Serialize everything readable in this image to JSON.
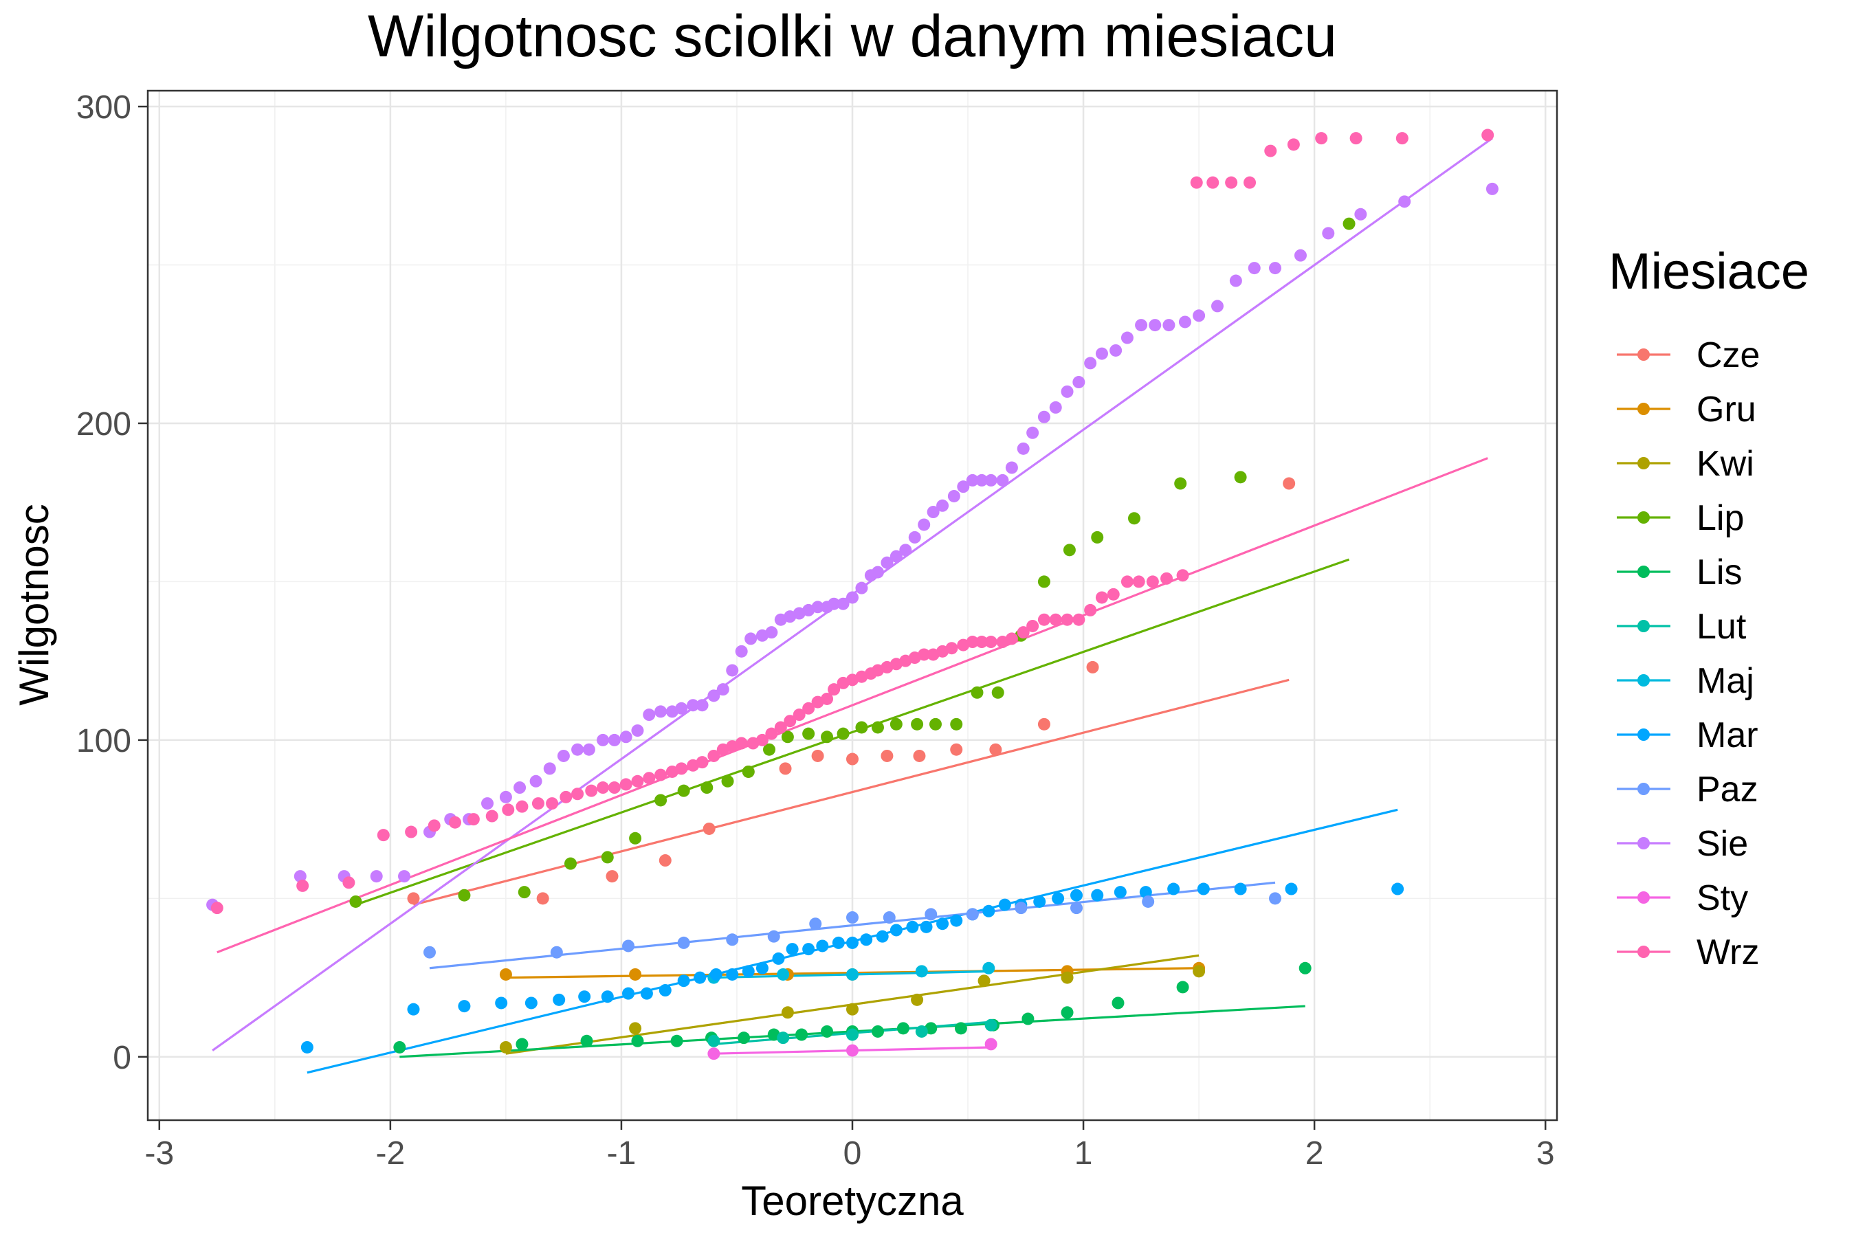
{
  "chart_data": {
    "type": "scatter",
    "title": "Wilgotnosc sciolki w danym miesiacu",
    "xlabel": "Teoretyczna",
    "ylabel": "Wilgotnosc",
    "xlim": [
      -3.05,
      3.05
    ],
    "ylim": [
      -20,
      305
    ],
    "x_ticks": [
      -3,
      -2,
      -1,
      0,
      1,
      2,
      3
    ],
    "y_ticks": [
      0,
      100,
      200,
      300
    ],
    "x_tick_labels": [
      "-3",
      "-2",
      "-1",
      "0",
      "1",
      "2",
      "3"
    ],
    "y_tick_labels": [
      "0",
      "100",
      "200",
      "300"
    ],
    "grid": true,
    "legend": {
      "title": "Miesiace",
      "position": "right"
    },
    "series": [
      {
        "name": "Cze",
        "color": "#F8766D",
        "x": [
          -1.9,
          -1.34,
          -1.04,
          -0.81,
          -0.62,
          -0.45,
          -0.29,
          -0.15,
          0,
          0.15,
          0.29,
          0.45,
          0.62,
          0.83,
          1.04,
          1.89
        ],
        "y": [
          50,
          50,
          57,
          62,
          72,
          90,
          91,
          95,
          94,
          95,
          95,
          97,
          97,
          105,
          123,
          181
        ],
        "line": [
          [
            -1.9,
            48
          ],
          [
            1.89,
            119
          ]
        ]
      },
      {
        "name": "Gru",
        "color": "#DB8E00",
        "x": [
          -1.5,
          -0.94,
          -0.28,
          0,
          0.93,
          1.5
        ],
        "y": [
          26,
          26,
          26,
          26,
          27,
          28
        ],
        "line": [
          [
            -1.5,
            25
          ],
          [
            1.5,
            28
          ]
        ]
      },
      {
        "name": "Kwi",
        "color": "#AEA200",
        "x": [
          -1.5,
          -0.94,
          -0.28,
          0,
          0.28,
          0.57,
          0.93,
          1.5
        ],
        "y": [
          3,
          9,
          14,
          15,
          18,
          24,
          25,
          27
        ],
        "line": [
          [
            -1.5,
            1
          ],
          [
            1.5,
            32
          ]
        ]
      },
      {
        "name": "Lip",
        "color": "#64B200",
        "x": [
          -2.15,
          -1.68,
          -1.42,
          -1.22,
          -1.06,
          -0.94,
          -0.83,
          -0.73,
          -0.63,
          -0.54,
          -0.45,
          -0.36,
          -0.28,
          -0.19,
          -0.11,
          -0.04,
          0.04,
          0.11,
          0.19,
          0.28,
          0.36,
          0.45,
          0.54,
          0.63,
          0.73,
          0.83,
          0.94,
          1.06,
          1.22,
          1.42,
          1.68,
          2.15
        ],
        "y": [
          49,
          51,
          52,
          61,
          63,
          69,
          81,
          84,
          85,
          87,
          90,
          97,
          101,
          102,
          101,
          102,
          104,
          104,
          105,
          105,
          105,
          105,
          115,
          115,
          133,
          150,
          160,
          164,
          170,
          181,
          183,
          263
        ],
        "line": [
          [
            -2.15,
            48
          ],
          [
            2.15,
            157
          ]
        ]
      },
      {
        "name": "Lis",
        "color": "#00BD5C",
        "x": [
          -1.96,
          -1.43,
          -1.15,
          -0.93,
          -0.76,
          -0.61,
          -0.47,
          -0.34,
          -0.22,
          -0.11,
          0,
          0.11,
          0.22,
          0.34,
          0.47,
          0.61,
          0.76,
          0.93,
          1.15,
          1.43,
          1.96
        ],
        "y": [
          3,
          4,
          5,
          5,
          5,
          6,
          6,
          7,
          7,
          8,
          8,
          8,
          9,
          9,
          9,
          10,
          12,
          14,
          17,
          22,
          28
        ],
        "line": [
          [
            -1.96,
            0
          ],
          [
            1.96,
            16
          ]
        ]
      },
      {
        "name": "Lut",
        "color": "#00C1A7",
        "x": [
          -0.6,
          -0.3,
          0,
          0.3,
          0.6
        ],
        "y": [
          5,
          6,
          7,
          8,
          10
        ],
        "line": [
          [
            -0.6,
            4
          ],
          [
            0.6,
            11
          ]
        ]
      },
      {
        "name": "Maj",
        "color": "#00BADE",
        "x": [
          -0.6,
          -0.3,
          0,
          0.3,
          0.59
        ],
        "y": [
          25,
          26,
          26,
          27,
          28
        ],
        "line": [
          [
            -0.6,
            25
          ],
          [
            0.6,
            27
          ]
        ]
      },
      {
        "name": "Mar",
        "color": "#00A6FF",
        "x": [
          -2.36,
          -1.9,
          -1.68,
          -1.52,
          -1.39,
          -1.27,
          -1.16,
          -1.06,
          -0.97,
          -0.89,
          -0.81,
          -0.73,
          -0.66,
          -0.59,
          -0.52,
          -0.45,
          -0.39,
          -0.32,
          -0.26,
          -0.19,
          -0.13,
          -0.06,
          0,
          0.06,
          0.13,
          0.19,
          0.26,
          0.32,
          0.39,
          0.45,
          0.52,
          0.59,
          0.66,
          0.73,
          0.81,
          0.89,
          0.97,
          1.06,
          1.16,
          1.27,
          1.39,
          1.52,
          1.68,
          1.9,
          2.36
        ],
        "y": [
          3,
          15,
          16,
          17,
          17,
          18,
          19,
          19,
          20,
          20,
          21,
          24,
          25,
          26,
          26,
          27,
          28,
          31,
          34,
          34,
          35,
          36,
          36,
          37,
          38,
          40,
          41,
          41,
          42,
          43,
          45,
          46,
          48,
          48,
          49,
          50,
          51,
          51,
          52,
          52,
          53,
          53,
          53,
          53,
          53
        ],
        "line": [
          [
            -2.36,
            -5
          ],
          [
            2.36,
            78
          ]
        ]
      },
      {
        "name": "Paz",
        "color": "#6D9CFF",
        "x": [
          -1.83,
          -1.28,
          -0.97,
          -0.73,
          -0.52,
          -0.34,
          -0.16,
          0,
          0.16,
          0.34,
          0.52,
          0.73,
          0.97,
          1.28,
          1.83
        ],
        "y": [
          33,
          33,
          35,
          36,
          37,
          38,
          42,
          44,
          44,
          45,
          45,
          47,
          47,
          49,
          50
        ],
        "line": [
          [
            -1.83,
            28
          ],
          [
            1.83,
            55
          ]
        ]
      },
      {
        "name": "Sie",
        "color": "#C77CFF",
        "x": [
          -2.77,
          -2.39,
          -2.2,
          -2.06,
          -1.94,
          -1.83,
          -1.74,
          -1.66,
          -1.58,
          -1.5,
          -1.44,
          -1.37,
          -1.31,
          -1.25,
          -1.19,
          -1.14,
          -1.08,
          -1.03,
          -0.98,
          -0.93,
          -0.88,
          -0.83,
          -0.78,
          -0.74,
          -0.69,
          -0.65,
          -0.6,
          -0.56,
          -0.52,
          -0.48,
          -0.44,
          -0.39,
          -0.35,
          -0.31,
          -0.27,
          -0.23,
          -0.19,
          -0.15,
          -0.11,
          -0.08,
          -0.04,
          0,
          0.04,
          0.08,
          0.11,
          0.15,
          0.19,
          0.23,
          0.27,
          0.31,
          0.35,
          0.39,
          0.44,
          0.48,
          0.52,
          0.56,
          0.6,
          0.65,
          0.69,
          0.74,
          0.78,
          0.83,
          0.88,
          0.93,
          0.98,
          1.03,
          1.08,
          1.14,
          1.19,
          1.25,
          1.31,
          1.37,
          1.44,
          1.5,
          1.58,
          1.66,
          1.74,
          1.83,
          1.94,
          2.06,
          2.2,
          2.39,
          2.77
        ],
        "y": [
          48,
          57,
          57,
          57,
          57,
          71,
          75,
          75,
          80,
          82,
          85,
          87,
          91,
          95,
          97,
          97,
          100,
          100,
          101,
          103,
          108,
          109,
          109,
          110,
          111,
          111,
          114,
          116,
          122,
          128,
          132,
          133,
          134,
          138,
          139,
          140,
          141,
          142,
          142,
          143,
          143,
          145,
          148,
          152,
          153,
          156,
          158,
          160,
          164,
          168,
          172,
          174,
          177,
          180,
          182,
          182,
          182,
          182,
          186,
          192,
          197,
          202,
          205,
          210,
          213,
          219,
          222,
          223,
          227,
          231,
          231,
          231,
          232,
          234,
          237,
          245,
          249,
          249,
          253,
          260,
          266,
          270,
          274
        ],
        "line": [
          [
            -2.77,
            2
          ],
          [
            2.77,
            290
          ]
        ]
      },
      {
        "name": "Sty",
        "color": "#F564E3",
        "x": [
          -0.6,
          0,
          0.6
        ],
        "y": [
          1,
          2,
          4
        ],
        "line": [
          [
            -0.6,
            1
          ],
          [
            0.6,
            3
          ]
        ]
      },
      {
        "name": "Wrz",
        "color": "#FF64B0",
        "x": [
          -2.75,
          -2.38,
          -2.18,
          -2.03,
          -1.91,
          -1.81,
          -1.72,
          -1.64,
          -1.56,
          -1.49,
          -1.43,
          -1.36,
          -1.3,
          -1.24,
          -1.19,
          -1.13,
          -1.08,
          -1.03,
          -0.98,
          -0.93,
          -0.88,
          -0.83,
          -0.78,
          -0.74,
          -0.69,
          -0.65,
          -0.6,
          -0.56,
          -0.52,
          -0.48,
          -0.43,
          -0.39,
          -0.35,
          -0.31,
          -0.27,
          -0.23,
          -0.19,
          -0.15,
          -0.11,
          -0.08,
          -0.04,
          0,
          0.04,
          0.08,
          0.11,
          0.15,
          0.19,
          0.23,
          0.27,
          0.31,
          0.35,
          0.39,
          0.43,
          0.48,
          0.52,
          0.56,
          0.6,
          0.65,
          0.69,
          0.74,
          0.78,
          0.83,
          0.88,
          0.93,
          0.98,
          1.03,
          1.08,
          1.13,
          1.19,
          1.24,
          1.3,
          1.36,
          1.43,
          1.49,
          1.56,
          1.64,
          1.72,
          1.81,
          1.91,
          2.03,
          2.18,
          2.38,
          2.75
        ],
        "y": [
          47,
          54,
          55,
          70,
          71,
          73,
          74,
          75,
          76,
          78,
          79,
          80,
          80,
          82,
          83,
          84,
          85,
          85,
          86,
          87,
          88,
          89,
          90,
          91,
          92,
          93,
          95,
          97,
          98,
          99,
          99,
          100,
          102,
          104,
          106,
          108,
          110,
          112,
          113,
          116,
          118,
          119,
          120,
          121,
          122,
          123,
          124,
          125,
          126,
          127,
          127,
          128,
          129,
          130,
          131,
          131,
          131,
          131,
          132,
          134,
          136,
          138,
          138,
          138,
          138,
          141,
          145,
          146,
          150,
          150,
          150,
          151,
          152,
          276,
          276,
          276,
          276,
          286,
          288,
          290,
          290,
          290,
          291
        ],
        "line": [
          [
            -2.75,
            33
          ],
          [
            2.75,
            189
          ]
        ]
      }
    ]
  }
}
